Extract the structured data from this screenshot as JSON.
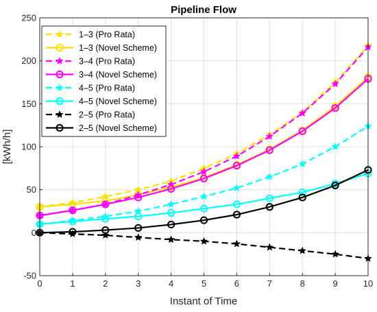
{
  "chart_data": {
    "type": "line",
    "title": "Pipeline Flow",
    "xlabel": "Instant of Time",
    "ylabel": "[kWh/h]",
    "xlim": [
      0,
      10
    ],
    "ylim": [
      -50,
      250
    ],
    "xticks": [
      0,
      1,
      2,
      3,
      4,
      5,
      6,
      7,
      8,
      9,
      10
    ],
    "yticks": [
      -50,
      0,
      50,
      100,
      150,
      200,
      250
    ],
    "grid": true,
    "legend_position": "top-left",
    "x": [
      0,
      1,
      2,
      3,
      4,
      5,
      6,
      7,
      8,
      9,
      10
    ],
    "series": [
      {
        "name": "1–3 (Pro Rata)",
        "color": "#FFE000",
        "style": "dashed",
        "marker": "star",
        "values": [
          30,
          35,
          42,
          50,
          60,
          75,
          92,
          114,
          140,
          175,
          218
        ]
      },
      {
        "name": "1–3 (Novel Scheme)",
        "color": "#FFE000",
        "style": "solid",
        "marker": "circle",
        "values": [
          30,
          33,
          37,
          44,
          53,
          64,
          79,
          97,
          119,
          147,
          181
        ]
      },
      {
        "name": "3–4 (Pro Rata)",
        "color": "#FF00FF",
        "style": "dashed",
        "marker": "star",
        "values": [
          20,
          26,
          33,
          44,
          56,
          71,
          89,
          112,
          139,
          173,
          216
        ]
      },
      {
        "name": "3–4 (Novel Scheme)",
        "color": "#FF00FF",
        "style": "solid",
        "marker": "circle",
        "values": [
          20,
          26,
          33,
          41,
          51,
          63,
          78,
          96,
          118,
          145,
          179
        ]
      },
      {
        "name": "4–5 (Pro Rata)",
        "color": "#00FFFF",
        "style": "dashed",
        "marker": "star",
        "values": [
          10,
          14,
          19,
          25,
          33,
          42,
          52,
          65,
          80,
          100,
          124
        ]
      },
      {
        "name": "4–5 (Novel Scheme)",
        "color": "#00FFFF",
        "style": "solid",
        "marker": "circle",
        "values": [
          10,
          13,
          16,
          19,
          23,
          28,
          33,
          40,
          47,
          57,
          69
        ]
      },
      {
        "name": "2–5 (Pro Rata)",
        "color": "#000000",
        "style": "dashed",
        "marker": "star",
        "values": [
          0,
          -1.5,
          -3,
          -5.5,
          -8,
          -10,
          -13,
          -17,
          -21,
          -25,
          -30
        ]
      },
      {
        "name": "2–5 (Novel Scheme)",
        "color": "#000000",
        "style": "solid",
        "marker": "circle",
        "values": [
          0,
          1,
          3,
          5.5,
          9.5,
          14.5,
          21,
          30,
          41,
          55,
          73
        ]
      }
    ]
  }
}
